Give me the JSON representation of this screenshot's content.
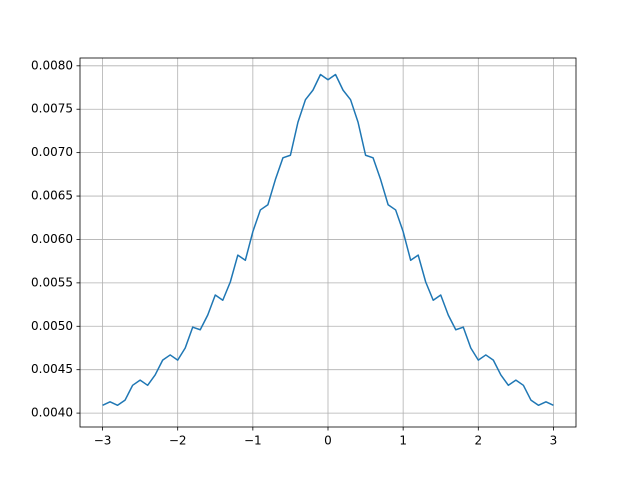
{
  "chart_data": {
    "type": "line",
    "x": [
      -3.0,
      -2.9,
      -2.8,
      -2.7,
      -2.6,
      -2.5,
      -2.4,
      -2.3,
      -2.2,
      -2.1,
      -2.0,
      -1.9,
      -1.8,
      -1.7,
      -1.6,
      -1.5,
      -1.4,
      -1.3,
      -1.2,
      -1.1,
      -1.0,
      -0.9,
      -0.8,
      -0.7,
      -0.6,
      -0.5,
      -0.4,
      -0.3,
      -0.2,
      -0.1,
      0.0,
      0.1,
      0.2,
      0.3,
      0.4,
      0.5,
      0.6,
      0.7,
      0.8,
      0.9,
      1.0,
      1.1,
      1.2,
      1.3,
      1.4,
      1.5,
      1.6,
      1.7,
      1.8,
      1.9,
      2.0,
      2.1,
      2.2,
      2.3,
      2.4,
      2.5,
      2.6,
      2.7,
      2.8,
      2.9,
      3.0
    ],
    "series": [
      {
        "color": "#1f77b4",
        "values": [
          0.00409,
          0.00413,
          0.00409,
          0.00415,
          0.00432,
          0.00438,
          0.00432,
          0.00444,
          0.00461,
          0.00467,
          0.00461,
          0.00475,
          0.00499,
          0.00496,
          0.00513,
          0.00536,
          0.0053,
          0.00551,
          0.00582,
          0.00576,
          0.00609,
          0.00634,
          0.0064,
          0.00669,
          0.00694,
          0.00697,
          0.00735,
          0.00761,
          0.00772,
          0.0079,
          0.00784,
          0.0079,
          0.00772,
          0.00761,
          0.00735,
          0.00697,
          0.00694,
          0.00669,
          0.0064,
          0.00634,
          0.00609,
          0.00576,
          0.00582,
          0.00551,
          0.0053,
          0.00536,
          0.00513,
          0.00496,
          0.00499,
          0.00475,
          0.00461,
          0.00467,
          0.00461,
          0.00444,
          0.00432,
          0.00438,
          0.00432,
          0.00415,
          0.00409,
          0.00413,
          0.00409
        ]
      }
    ],
    "xlim": [
      -3.3,
      3.3
    ],
    "ylim": [
      0.00384,
      0.00809
    ],
    "xticks": [
      {
        "value": -3,
        "label": "−3"
      },
      {
        "value": -2,
        "label": "−2"
      },
      {
        "value": -1,
        "label": "−1"
      },
      0,
      1,
      2,
      3
    ],
    "yticks": [
      {
        "value": 0.004,
        "label": "0.0040"
      },
      {
        "value": 0.0045,
        "label": "0.0045"
      },
      {
        "value": 0.005,
        "label": "0.0050"
      },
      {
        "value": 0.0055,
        "label": "0.0055"
      },
      {
        "value": 0.006,
        "label": "0.0060"
      },
      {
        "value": 0.0065,
        "label": "0.0065"
      },
      {
        "value": 0.007,
        "label": "0.0070"
      },
      {
        "value": 0.0075,
        "label": "0.0075"
      },
      {
        "value": 0.008,
        "label": "0.0080"
      }
    ],
    "grid": true
  }
}
